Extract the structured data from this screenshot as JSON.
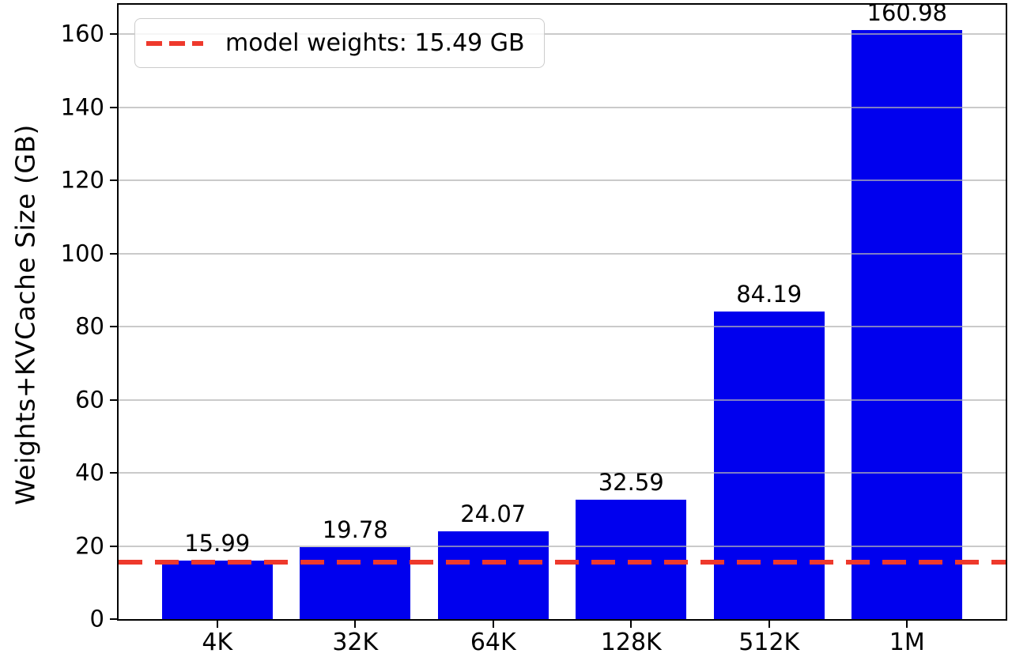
{
  "chart_data": {
    "type": "bar",
    "title": "",
    "categories": [
      "4K",
      "32K",
      "64K",
      "128K",
      "512K",
      "1M"
    ],
    "values": [
      15.99,
      19.78,
      24.07,
      32.59,
      84.19,
      160.98
    ],
    "bar_labels": [
      "15.99",
      "19.78",
      "24.07",
      "32.59",
      "84.19",
      "160.98"
    ],
    "xlabel": "",
    "ylabel": "Weights+KVCache Size (GB)",
    "ylim": [
      0,
      168
    ],
    "yticks": [
      0,
      20,
      40,
      60,
      80,
      100,
      120,
      140,
      160
    ],
    "grid": true,
    "legend_position": "upper left",
    "bar_color": "#0000ee",
    "axis_color": "#000000",
    "grid_color": "#b4b4b4",
    "reference_line": {
      "value": 15.49,
      "color": "#ee392c",
      "style": "dashed",
      "label": "model weights: 15.49 GB"
    },
    "legend": {
      "entries": [
        {
          "label": "model weights: 15.49 GB",
          "marker": "dashed-line",
          "color": "#ee392c"
        }
      ]
    }
  }
}
